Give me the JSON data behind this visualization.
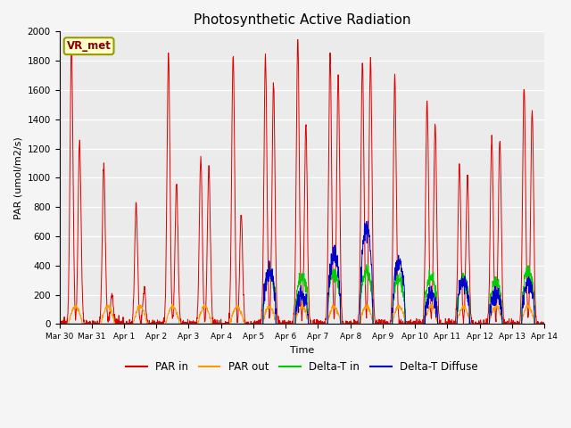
{
  "title": "Photosynthetic Active Radiation",
  "ylabel": "PAR (umol/m2/s)",
  "xlabel": "Time",
  "ylim": [
    0,
    2000
  ],
  "plot_bg": "#ebebeb",
  "fig_bg": "#f5f5f5",
  "legend_label": "VR_met",
  "series": {
    "PAR_in": {
      "color": "#dd0000",
      "label": "PAR in"
    },
    "PAR_out": {
      "color": "#ff9900",
      "label": "PAR out"
    },
    "Delta_T_in": {
      "color": "#00cc00",
      "label": "Delta-T in"
    },
    "Delta_T_Diff": {
      "color": "#0000cc",
      "label": "Delta-T Diffuse"
    }
  },
  "x_tick_labels": [
    "Mar 30",
    "Mar 31",
    "Apr 1",
    "Apr 2",
    "Apr 3",
    "Apr 4",
    "Apr 5",
    "Apr 6",
    "Apr 7",
    "Apr 8",
    "Apr 9",
    "Apr 10",
    "Apr 11",
    "Apr 12",
    "Apr 13",
    "Apr 14"
  ],
  "x_tick_positions": [
    0,
    1,
    2,
    3,
    4,
    5,
    6,
    7,
    8,
    9,
    10,
    11,
    12,
    13,
    14,
    15
  ],
  "yticks": [
    0,
    200,
    400,
    600,
    800,
    1000,
    1200,
    1400,
    1600,
    1800,
    2000
  ],
  "par_in_day_peaks": [
    [
      1900,
      1250
    ],
    [
      1100,
      200
    ],
    [
      820,
      230
    ],
    [
      1840,
      960
    ],
    [
      1140,
      1070
    ],
    [
      1840,
      760
    ],
    [
      1840,
      1650
    ],
    [
      1950,
      1370
    ],
    [
      1840,
      1700
    ],
    [
      1800,
      1820
    ],
    [
      1680,
      null
    ],
    [
      1530,
      1370
    ],
    [
      1100,
      1010
    ],
    [
      1270,
      1270
    ],
    [
      1620,
      1450
    ]
  ],
  "par_out_peak": 120,
  "delta_start_day": 6,
  "delta_t_in_levels": [
    360,
    320,
    340,
    360,
    300,
    320,
    300,
    280,
    360,
    330
  ],
  "delta_t_diff_levels": [
    360,
    200,
    500,
    650,
    430,
    200,
    280,
    200,
    280,
    250
  ]
}
